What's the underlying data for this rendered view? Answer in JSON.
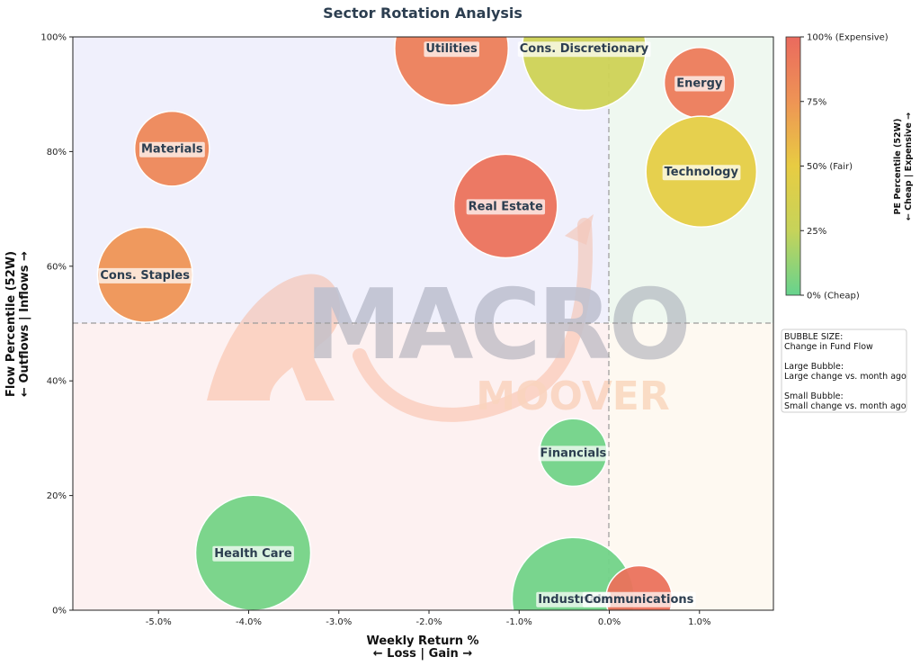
{
  "chart_data": {
    "type": "scatter",
    "title": "Sector Rotation Analysis",
    "xlabel_line1": "Weekly Return %",
    "xlabel_line2": "← Loss | Gain →",
    "ylabel_line1": "Flow Percentile (52W)",
    "ylabel_line2": "← Outflows | Inflows →",
    "xlim": [
      -5.95,
      1.82
    ],
    "ylim": [
      0,
      100
    ],
    "x_ticks": [
      -5,
      -4,
      -3,
      -2,
      -1,
      0,
      1
    ],
    "x_tick_labels": [
      "-5.0%",
      "-4.0%",
      "-3.0%",
      "-2.0%",
      "-1.0%",
      "0.0%",
      "1.0%"
    ],
    "y_ticks": [
      0,
      20,
      40,
      60,
      80,
      100
    ],
    "y_tick_labels": [
      "0%",
      "20%",
      "40%",
      "60%",
      "80%",
      "100%"
    ],
    "reference_lines": {
      "x": 0,
      "y": 50
    },
    "quadrant_colors": {
      "top_left": "#f0f0fc",
      "top_right": "#eff8f0",
      "bottom_left": "#fdf1f1",
      "bottom_right": "#fef9f1"
    },
    "colorbar": {
      "title_line1": "PE Percentile (52W)",
      "title_line2": "← Cheap | Expensive →",
      "tick_labels": [
        "100% (Expensive)",
        "75%",
        "50% (Fair)",
        "25%",
        "0% (Cheap)"
      ],
      "tick_values": [
        100,
        75,
        50,
        25,
        0
      ],
      "stops": [
        "#66d38e",
        "#c6d35a",
        "#e8cc42",
        "#ee9455",
        "#ea6a5e"
      ]
    },
    "bubble_size_note": [
      "BUBBLE SIZE:",
      "Change in Fund Flow",
      "",
      "Large Bubble:",
      "Large change vs. month ago",
      "",
      "Small Bubble:",
      "Small change vs. month ago"
    ],
    "points": [
      {
        "name": "Utilities",
        "x": -1.75,
        "y": 98,
        "size": 0.79,
        "pe_percentile": 88
      },
      {
        "name": "Cons. Discretionary",
        "x": -0.28,
        "y": 98,
        "size": 0.86,
        "pe_percentile": 30
      },
      {
        "name": "Energy",
        "x": 1.0,
        "y": 92,
        "size": 0.49,
        "pe_percentile": 90
      },
      {
        "name": "Technology",
        "x": 1.02,
        "y": 76.5,
        "size": 0.77,
        "pe_percentile": 48
      },
      {
        "name": "Materials",
        "x": -4.85,
        "y": 80.5,
        "size": 0.52,
        "pe_percentile": 83
      },
      {
        "name": "Real Estate",
        "x": -1.15,
        "y": 70.5,
        "size": 0.72,
        "pe_percentile": 95
      },
      {
        "name": "Cons. Staples",
        "x": -5.15,
        "y": 58.5,
        "size": 0.66,
        "pe_percentile": 75
      },
      {
        "name": "Financials",
        "x": -0.4,
        "y": 27.5,
        "size": 0.47,
        "pe_percentile": 3
      },
      {
        "name": "Health Care",
        "x": -3.95,
        "y": 10,
        "size": 0.8,
        "pe_percentile": 4
      },
      {
        "name": "Industrials",
        "x": -0.4,
        "y": 2,
        "size": 0.85,
        "pe_percentile": 3
      },
      {
        "name": "Communications",
        "x": 0.33,
        "y": 2,
        "size": 0.46,
        "pe_percentile": 95
      }
    ]
  }
}
